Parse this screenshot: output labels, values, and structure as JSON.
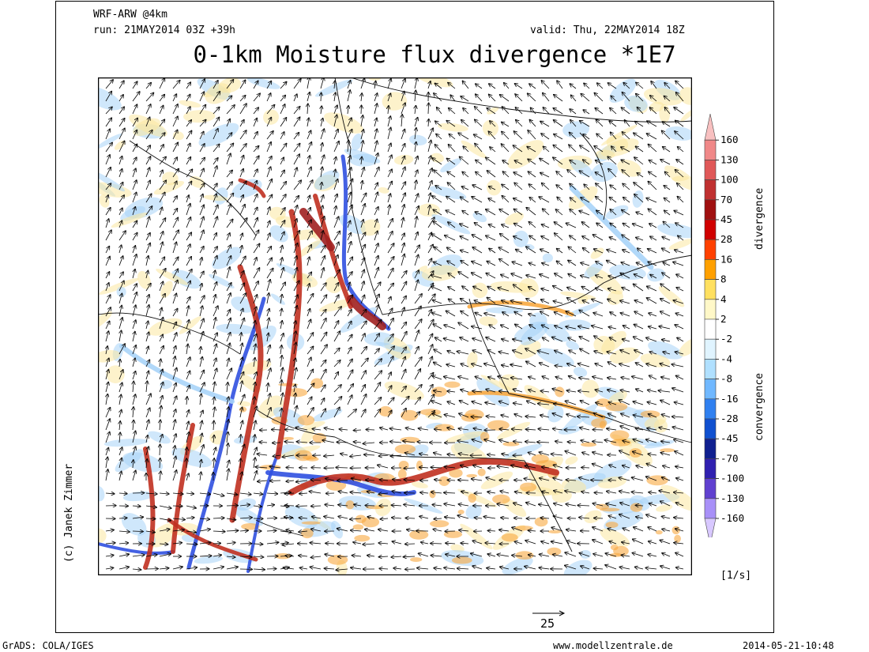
{
  "header": {
    "model": "WRF-ARW @4km",
    "run": "run: 21MAY2014 03Z +39h",
    "valid": "valid: Thu, 22MAY2014 18Z",
    "title": "0-1km Moisture flux divergence *1E7"
  },
  "colorbar": {
    "levels": [
      "160",
      "130",
      "100",
      "70",
      "45",
      "28",
      "16",
      "8",
      "4",
      "2",
      "-2",
      "-4",
      "-8",
      "-16",
      "-28",
      "-45",
      "-70",
      "-100",
      "-130",
      "-160"
    ],
    "colors": [
      "#f8c0c0",
      "#f08888",
      "#e05858",
      "#c03030",
      "#a01010",
      "#d00000",
      "#ff4000",
      "#ffa000",
      "#ffe060",
      "#fff8c8",
      "#ffffff",
      "#e0f4ff",
      "#b0e0ff",
      "#70b8ff",
      "#3080f0",
      "#1050d0",
      "#102090",
      "#3020b0",
      "#6040d0",
      "#a890f8",
      "#d8c8ff"
    ],
    "label_top": "divergence",
    "label_bottom": "convergence",
    "unit": "[1/s]"
  },
  "vector_legend": {
    "value": "25"
  },
  "credit": "(c) Janek Zimmer",
  "footer": {
    "left": "GrADS: COLA/IGES",
    "center": "www.modellzentrale.de",
    "right": "2014-05-21-10:48"
  },
  "palette": {
    "positive_band": "#c03020",
    "positive_core": "#a02020",
    "negative_band": "#3050e0",
    "light_blue": "#a8d4f8",
    "yellow": "#fce8a0",
    "orange": "#f8a840"
  }
}
